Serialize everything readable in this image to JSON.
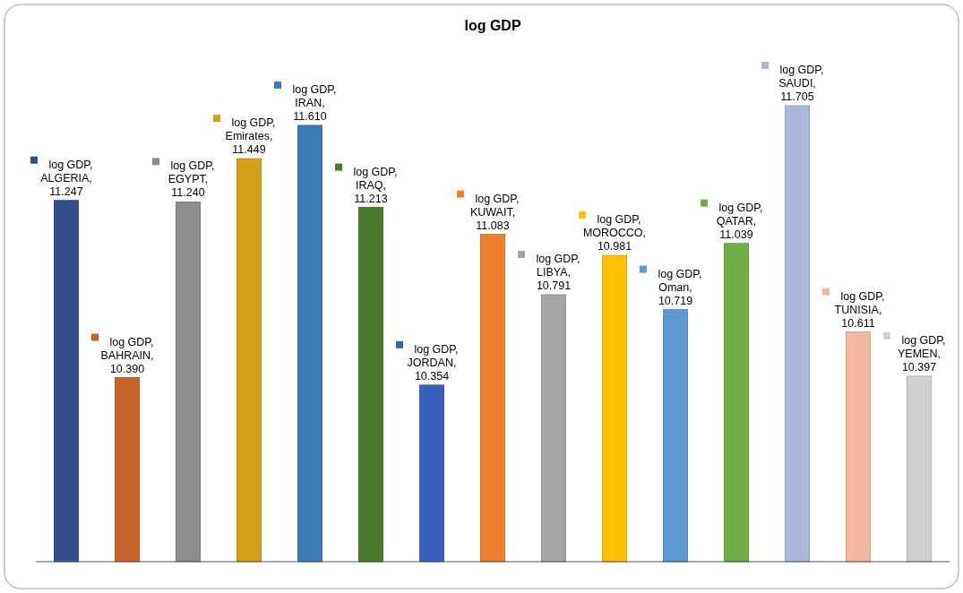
{
  "chart_data": {
    "type": "bar",
    "title": "log GDP",
    "categories": [
      null,
      null,
      null,
      null,
      null,
      null,
      null,
      null,
      null,
      null,
      null,
      null,
      null,
      null,
      null
    ],
    "values": [
      11.247,
      10.39,
      11.24,
      11.449,
      11.61,
      11.213,
      10.354,
      11.083,
      10.791,
      10.981,
      10.719,
      11.039,
      11.705,
      10.611,
      10.397
    ],
    "colors": [
      "#2f4f8f",
      "#c8632a",
      "#8c8c8c",
      "#d4a017",
      "#3d7ab8",
      "#4a7a2a",
      "#3a5fbf",
      "#f08030",
      "#a6a6a6",
      "#ffc000",
      "#5b9bd5",
      "#70ad47",
      "#a9b7dc",
      "#f4b8a0",
      "#d0d0d0"
    ],
    "value_labels": [
      "log GDP, ALGERIA, 11.247",
      "log GDP, BAHRAIN, 10.390",
      "log GDP, EGYPT, 11.240",
      "log GDP, Emirates, 11.449",
      "log GDP, IRAN, 11.610",
      "log GDP, IRAQ, 11.213",
      "log GDP, JORDAN, 10.354",
      "log GDP, KUWAIT, 11.083",
      "log GDP, LIBYA, 10.791",
      "log GDP, MOROCCO, 10.981",
      "log GDP, Oman, 10.719",
      "log GDP, QATAR, 11.039",
      "log GDP, SAUDI, 11.705",
      "log GDP, TUNISIA, 10.611",
      "log GDP, YEMEN, 10.397"
    ],
    "ylim": [
      9.5,
      11.705
    ]
  }
}
